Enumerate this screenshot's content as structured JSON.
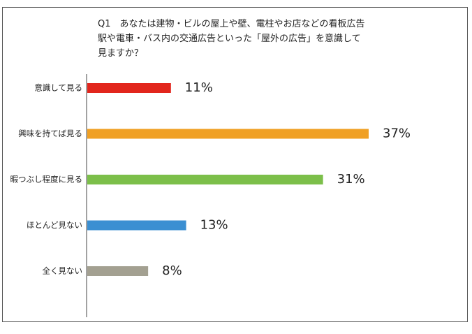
{
  "chart_data": {
    "type": "bar",
    "orientation": "horizontal",
    "title_lines": [
      "Q1　あなたは建物・ビルの屋上や壁、電柱やお店などの看板広告",
      "駅や電車・バス内の交通広告といった「屋外の広告」を意識して",
      "見ますか？"
    ],
    "categories": [
      "意識して見る",
      "興味を持てば見る",
      "暇つぶし程度に見る",
      "ほとんど見ない",
      "全く見ない"
    ],
    "values": [
      11,
      37,
      31,
      13,
      8
    ],
    "value_labels": [
      "11%",
      "37%",
      "31%",
      "13%",
      "8%"
    ],
    "colors": [
      "#e2261d",
      "#f0a024",
      "#7cbf4a",
      "#3b8fd2",
      "#a3a091"
    ],
    "xlim": [
      0,
      37
    ],
    "grid": false,
    "legend": "none"
  }
}
